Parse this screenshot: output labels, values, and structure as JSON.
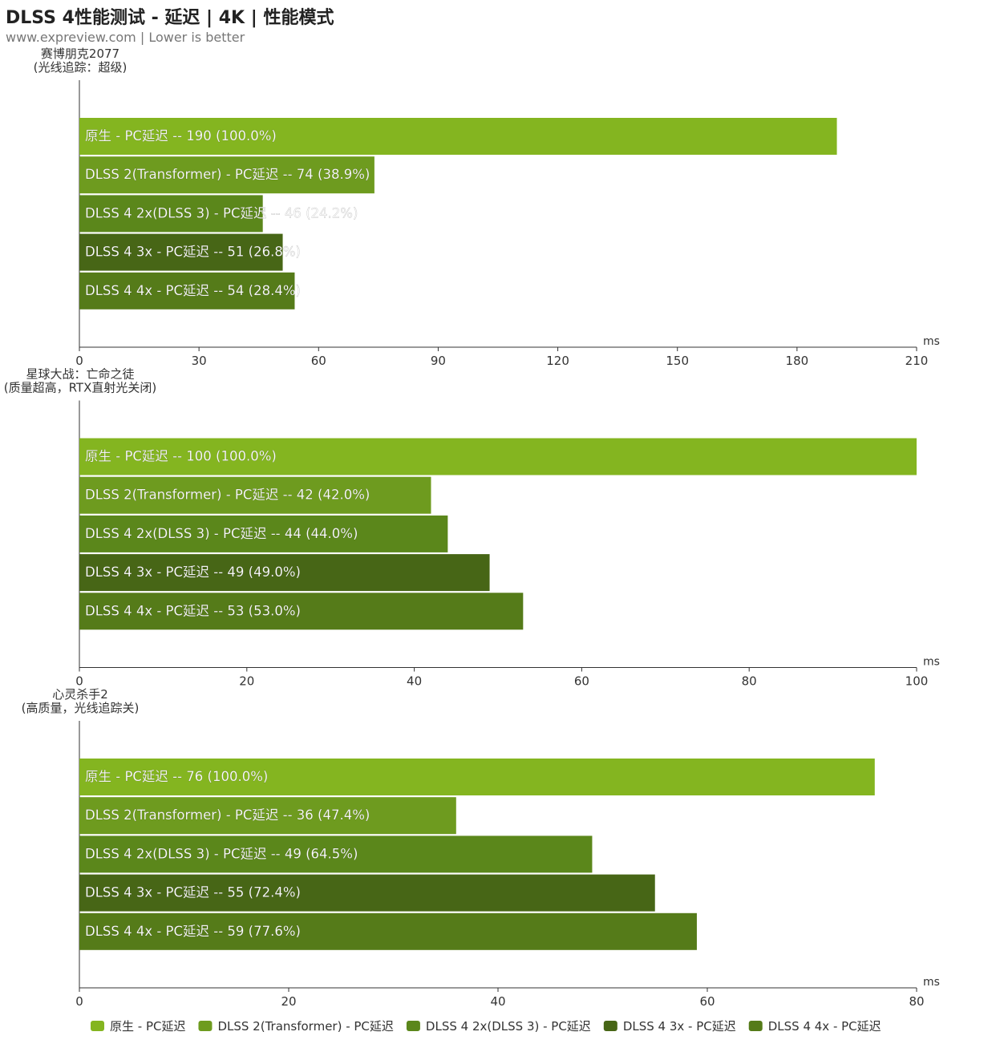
{
  "title": "DLSS 4性能测试 - 延迟 | 4K | 性能模式",
  "subtitle": "www.expreview.com | Lower is better",
  "chart_data": [
    {
      "type": "bar",
      "orientation": "horizontal",
      "title": [
        "赛博朋克2077",
        "(光线追踪：超级)"
      ],
      "xunit": "ms",
      "xlim": [
        0,
        210
      ],
      "ticks": [
        0,
        30,
        60,
        90,
        120,
        150,
        180,
        210
      ],
      "categories": [
        "原生 - PC延迟",
        "DLSS 2(Transformer) - PC延迟",
        "DLSS 4 2x(DLSS 3)  - PC延迟",
        "DLSS 4 3x  - PC延迟",
        "DLSS 4 4x  - PC延迟"
      ],
      "values": [
        190,
        74,
        46,
        51,
        54
      ],
      "percents": [
        "100.0%",
        "38.9%",
        "24.2%",
        "26.8%",
        "28.4%"
      ]
    },
    {
      "type": "bar",
      "orientation": "horizontal",
      "title": [
        "星球大战：亡命之徒",
        "(质量超高，RTX直射光关闭)"
      ],
      "xunit": "ms",
      "xlim": [
        0,
        100
      ],
      "ticks": [
        0,
        20,
        40,
        60,
        80,
        100
      ],
      "categories": [
        "原生 - PC延迟",
        "DLSS 2(Transformer) - PC延迟",
        "DLSS 4 2x(DLSS 3)  - PC延迟",
        "DLSS 4 3x  - PC延迟",
        "DLSS 4 4x  - PC延迟"
      ],
      "values": [
        100,
        42,
        44,
        49,
        53
      ],
      "percents": [
        "100.0%",
        "42.0%",
        "44.0%",
        "49.0%",
        "53.0%"
      ]
    },
    {
      "type": "bar",
      "orientation": "horizontal",
      "title": [
        "心灵杀手2",
        "(高质量，光线追踪关)"
      ],
      "xunit": "ms",
      "xlim": [
        0,
        80
      ],
      "ticks": [
        0,
        20,
        40,
        60,
        80
      ],
      "categories": [
        "原生 - PC延迟",
        "DLSS 2(Transformer) - PC延迟",
        "DLSS 4 2x(DLSS 3)  - PC延迟",
        "DLSS 4 3x  - PC延迟",
        "DLSS 4 4x  - PC延迟"
      ],
      "values": [
        76,
        36,
        49,
        55,
        59
      ],
      "percents": [
        "100.0%",
        "47.4%",
        "64.5%",
        "72.4%",
        "77.6%"
      ]
    }
  ],
  "legend": {
    "placement": "bottom",
    "items": [
      "原生 - PC延迟",
      "DLSS 2(Transformer) - PC延迟",
      "DLSS 4 2x(DLSS 3)  - PC延迟",
      "DLSS 4 3x  - PC延迟",
      "DLSS 4 4x  - PC延迟"
    ]
  },
  "colors": [
    "#84b520",
    "#6e9b1f",
    "#5b871b",
    "#476616",
    "#557b19"
  ]
}
